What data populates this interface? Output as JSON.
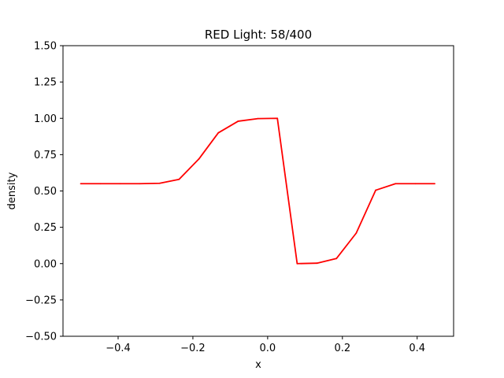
{
  "chart_data": {
    "type": "line",
    "title": "RED Light: 58/400",
    "xlabel": "x",
    "ylabel": "density",
    "xlim": [
      -0.5475,
      0.4975
    ],
    "ylim": [
      -0.5,
      1.5
    ],
    "xticks": [
      -0.4,
      -0.2,
      0.0,
      0.2,
      0.4
    ],
    "xtick_labels": [
      "−0.4",
      "−0.2",
      "0.0",
      "0.2",
      "0.4"
    ],
    "yticks": [
      -0.5,
      -0.25,
      0.0,
      0.25,
      0.5,
      0.75,
      1.0,
      1.25,
      1.5
    ],
    "ytick_labels": [
      "−0.50",
      "−0.25",
      "0.00",
      "0.25",
      "0.50",
      "0.75",
      "1.00",
      "1.25",
      "1.50"
    ],
    "grid": false,
    "series": [
      {
        "color": "#ff0000",
        "x": [
          -0.5,
          -0.447,
          -0.395,
          -0.342,
          -0.289,
          -0.237,
          -0.184,
          -0.132,
          -0.079,
          -0.026,
          0.026,
          0.079,
          0.132,
          0.184,
          0.237,
          0.289,
          0.342,
          0.395,
          0.447
        ],
        "y": [
          0.55,
          0.55,
          0.55,
          0.55,
          0.553,
          0.58,
          0.72,
          0.9,
          0.98,
          0.998,
          1.0,
          0.0,
          0.003,
          0.035,
          0.21,
          0.505,
          0.55,
          0.55,
          0.55
        ]
      }
    ]
  }
}
